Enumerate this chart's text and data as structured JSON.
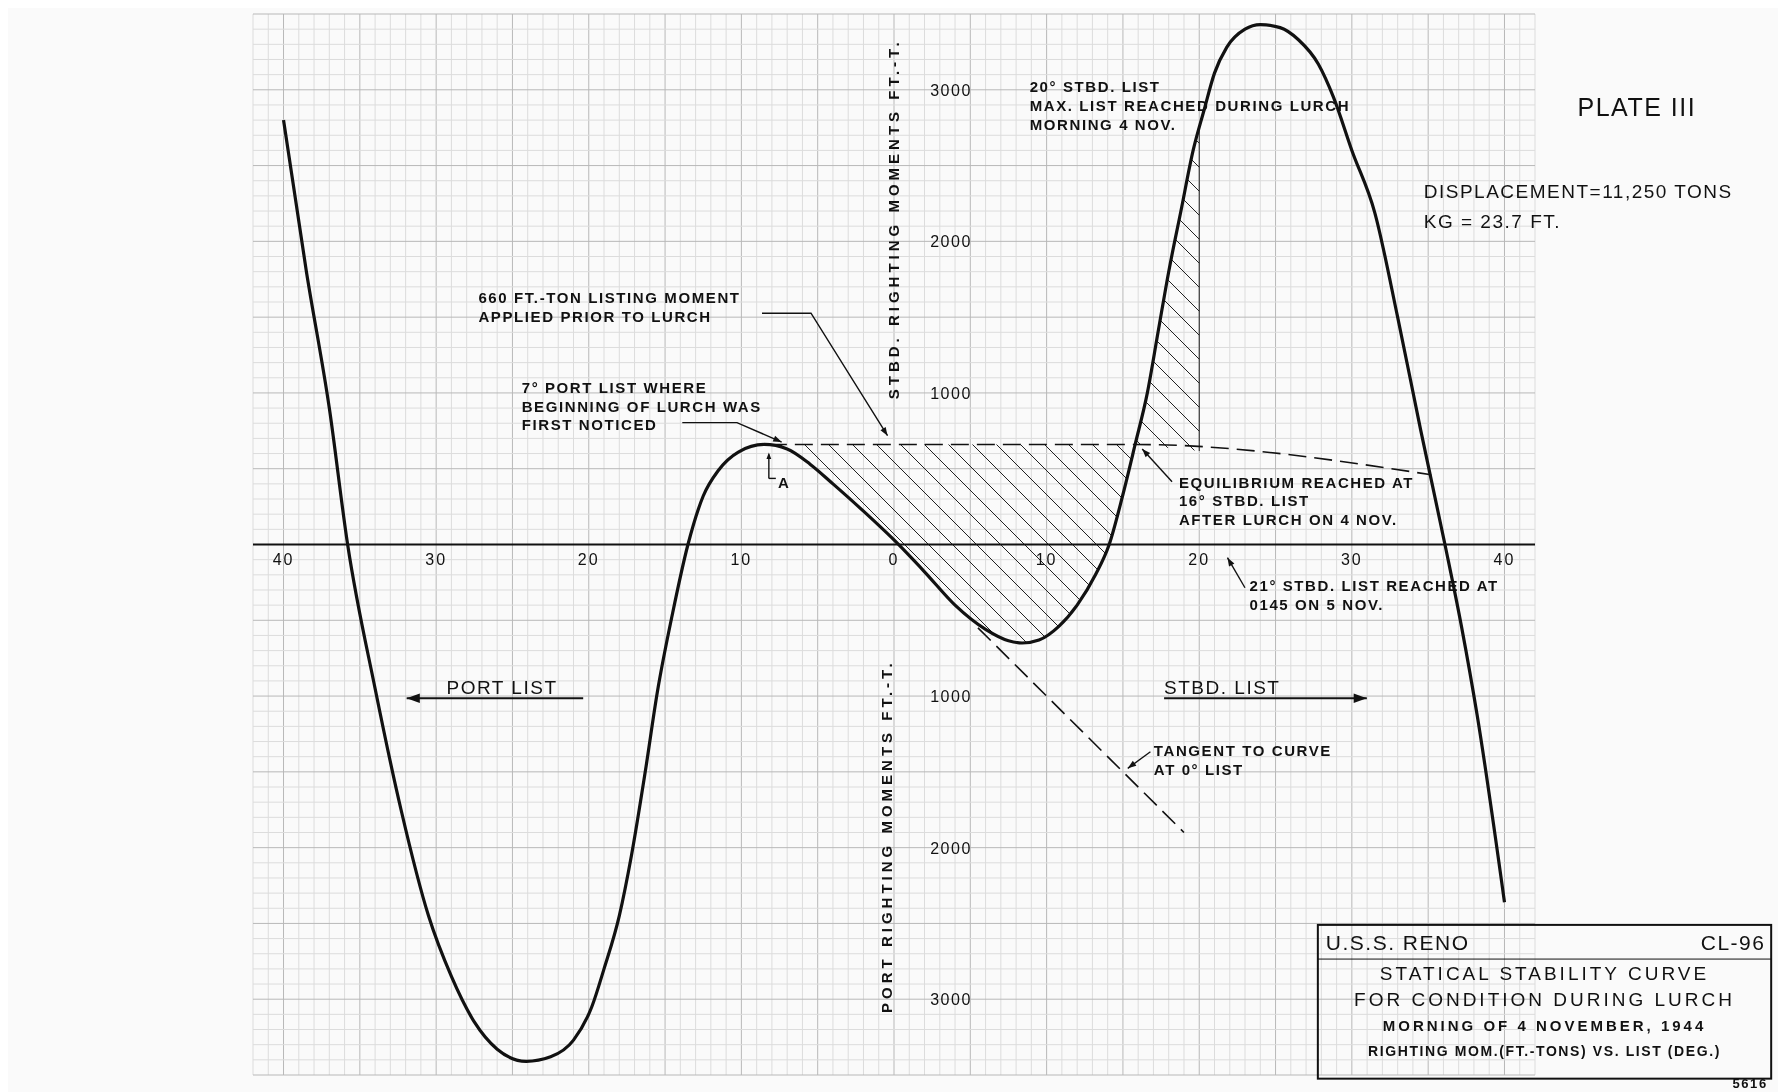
{
  "chart_data": {
    "type": "line",
    "title": "STATICAL STABILITY CURVE FOR CONDITION DURING LURCH",
    "subtitle": "MORNING OF 4 NOVEMBER, 1944",
    "ylabel": "STBD. RIGHTING MOMENTS FT.-T.",
    "xlim": [
      -42,
      42
    ],
    "ylim": [
      -3500,
      3500
    ],
    "xticks": [
      {
        "value": -40,
        "label": "40"
      },
      {
        "value": -30,
        "label": "30"
      },
      {
        "value": -20,
        "label": "20"
      },
      {
        "value": -10,
        "label": "10"
      },
      0,
      10,
      20,
      30,
      40
    ],
    "yticks": [
      {
        "value": -3000,
        "label": "3000"
      },
      {
        "value": -2000,
        "label": "2000"
      },
      {
        "value": -1000,
        "label": "1000"
      },
      1000,
      2000,
      3000
    ],
    "grid": true,
    "series": [
      {
        "color": "#111111",
        "line_style": "solid",
        "x": [
          -40,
          -38.5,
          -37,
          -35.8,
          -34,
          -32.3,
          -30.5,
          -29,
          -27.5,
          -26,
          -24.1,
          -22.5,
          -21,
          -19.8,
          -19,
          -18,
          -17.2,
          -16.3,
          -15.5,
          -14.5,
          -13.5,
          -12.5,
          -11.5,
          -10.2,
          -8.5,
          -7,
          -5.5,
          -4,
          -2,
          0,
          2,
          4,
          6,
          7.5,
          8.4,
          9.5,
          10.8,
          12,
          13.2,
          14.1,
          15,
          15.8,
          16.6,
          17.3,
          18,
          18.8,
          19.6,
          20.3,
          21,
          21.8,
          23,
          24,
          25.3,
          26.5,
          27.8,
          28.8,
          30,
          31.5,
          33,
          34.5,
          36.1,
          37.2,
          38.2,
          40
        ],
        "values": [
          2800,
          1800,
          900,
          0,
          -950,
          -1750,
          -2450,
          -2850,
          -3150,
          -3330,
          -3410,
          -3380,
          -3270,
          -3050,
          -2800,
          -2450,
          -2050,
          -1500,
          -970,
          -450,
          0,
          320,
          490,
          610,
          660,
          630,
          530,
          400,
          220,
          30,
          -180,
          -400,
          -560,
          -635,
          -650,
          -630,
          -540,
          -400,
          -200,
          0,
          330,
          660,
          1000,
          1400,
          1800,
          2200,
          2600,
          2860,
          3110,
          3280,
          3400,
          3430,
          3410,
          3330,
          3170,
          2950,
          2600,
          2190,
          1500,
          760,
          0,
          -550,
          -1120,
          -2360
        ]
      },
      {
        "color": "#111111",
        "line_style": "dashed",
        "x": [
          5.5,
          19
        ],
        "values": [
          -550,
          -1900
        ]
      },
      {
        "color": "#111111",
        "line_style": "dashed",
        "x": [
          -8.2,
          15.8,
          35.2
        ],
        "values": [
          660,
          660,
          460
        ]
      }
    ],
    "annotations": [
      "PLATE III",
      "DISPLACEMENT=11,250 TONS",
      "KG = 23.7 FT.",
      "660 FT.-TON LISTING MOMENT APPLIED PRIOR TO LURCH",
      {
        "text": "7° PORT LIST WHERE BEGINNING OF LURCH WAS FIRST NOTICED",
        "x": -7,
        "y": 660
      },
      "A",
      {
        "text": "20° STBD. LIST MAX. LIST REACHED DURING LURCH MORNING 4 NOV.",
        "x": 20,
        "y": 2800
      },
      {
        "text": "EQUILIBRIUM REACHED AT 16° STBD. LIST AFTER LURCH ON 4 NOV.",
        "x": 16,
        "y": 660
      },
      "21° STBD. LIST REACHED AT 0145 ON 5 NOV.",
      {
        "text": "TANGENT TO CURVE AT 0° LIST",
        "x": 15,
        "y": -1500
      },
      "PORT LIST",
      "STBD. LIST",
      "PORT RIGHTING MOMENTS FT.-T.",
      "U.S.S. RENO",
      "CL-96",
      "RIGHTING MOM.(FT.-TONS) VS. LIST (DEG.)",
      "5616"
    ]
  }
}
